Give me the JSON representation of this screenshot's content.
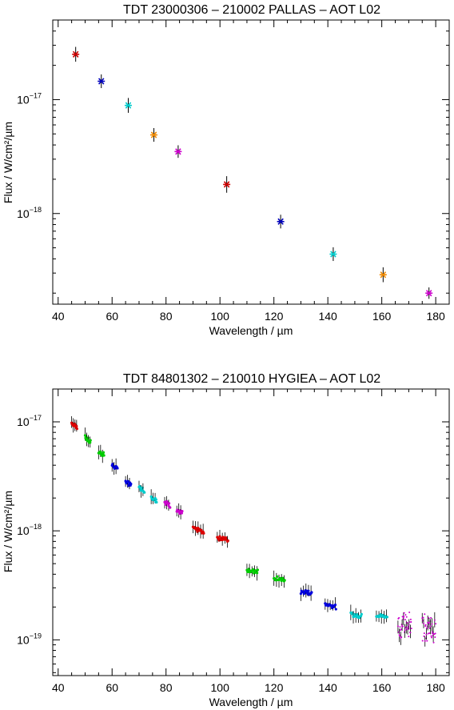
{
  "chart_data": [
    {
      "type": "scatter",
      "title": "TDT 23000306   –   210002 PALLAS   –   AOT L02",
      "xlabel": "Wavelength / µm",
      "ylabel": "Flux / W/cm²/µm",
      "xlim": [
        38,
        185
      ],
      "ylim": [
        1.6e-19,
        5e-17
      ],
      "yscale": "log",
      "x_ticks": [
        40,
        60,
        80,
        100,
        120,
        140,
        160,
        180
      ],
      "x_tick_labels": [
        "40",
        "60",
        "80",
        "100",
        "120",
        "140",
        "160",
        "180"
      ],
      "y_ticks": [
        1e-17,
        1e-18
      ],
      "y_tick_labels": [
        {
          "base": "10",
          "exp": "−17"
        },
        {
          "base": "10",
          "exp": "−18"
        }
      ],
      "grid": false,
      "points": [
        {
          "x": 46.5,
          "y": 2.5e-17,
          "color": "#cc0000",
          "err": 0.12
        },
        {
          "x": 56,
          "y": 1.45e-17,
          "color": "#0000bb",
          "err": 0.1
        },
        {
          "x": 66,
          "y": 8.9e-18,
          "color": "#00cccc",
          "err": 0.12
        },
        {
          "x": 75.5,
          "y": 4.9e-18,
          "color": "#ee8800",
          "err": 0.1
        },
        {
          "x": 84.5,
          "y": 3.5e-18,
          "color": "#cc00cc",
          "err": 0.08
        },
        {
          "x": 102.5,
          "y": 1.8e-18,
          "color": "#cc0000",
          "err": 0.15
        },
        {
          "x": 122.5,
          "y": 8.5e-19,
          "color": "#0000bb",
          "err": 0.1
        },
        {
          "x": 142,
          "y": 4.4e-19,
          "color": "#00cccc",
          "err": 0.1
        },
        {
          "x": 160.5,
          "y": 2.9e-19,
          "color": "#ee8800",
          "err": 0.12
        },
        {
          "x": 177.5,
          "y": 2e-19,
          "color": "#cc00cc",
          "err": 0.06
        }
      ]
    },
    {
      "type": "scatter",
      "title": "TDT 84801302   –   210010 HYGIEA   –   AOT L02",
      "xlabel": "Wavelength / µm",
      "ylabel": "Flux / W/cm²/µm",
      "xlim": [
        38,
        185
      ],
      "ylim": [
        4.7e-20,
        2e-17
      ],
      "yscale": "log",
      "x_ticks": [
        40,
        60,
        80,
        100,
        120,
        140,
        160,
        180
      ],
      "x_tick_labels": [
        "40",
        "60",
        "80",
        "100",
        "120",
        "140",
        "160",
        "180"
      ],
      "y_ticks": [
        1e-17,
        1e-18,
        1e-19
      ],
      "y_tick_labels": [
        {
          "base": "10",
          "exp": "−17"
        },
        {
          "base": "10",
          "exp": "−18"
        },
        {
          "base": "10",
          "exp": "−19"
        }
      ],
      "grid": false,
      "segments": [
        {
          "x0": 45,
          "x1": 47,
          "y0": 9.8e-18,
          "y1": 9e-18,
          "color": "#dd0000",
          "n": 14
        },
        {
          "x0": 50,
          "x1": 52,
          "y0": 7.2e-18,
          "y1": 6.5e-18,
          "color": "#00cc00",
          "n": 14
        },
        {
          "x0": 55,
          "x1": 57,
          "y0": 5.3e-18,
          "y1": 5e-18,
          "color": "#00cc00",
          "n": 12
        },
        {
          "x0": 60,
          "x1": 62,
          "y0": 4e-18,
          "y1": 3.7e-18,
          "color": "#0000dd",
          "n": 12
        },
        {
          "x0": 65,
          "x1": 67,
          "y0": 2.85e-18,
          "y1": 2.6e-18,
          "color": "#0000dd",
          "n": 12
        },
        {
          "x0": 70,
          "x1": 72,
          "y0": 2.5e-18,
          "y1": 2.35e-18,
          "color": "#00cccc",
          "n": 12
        },
        {
          "x0": 74.5,
          "x1": 76.5,
          "y0": 2.05e-18,
          "y1": 1.9e-18,
          "color": "#00cccc",
          "n": 12
        },
        {
          "x0": 79.5,
          "x1": 81.5,
          "y0": 1.85e-18,
          "y1": 1.7e-18,
          "color": "#cc00cc",
          "n": 12
        },
        {
          "x0": 84,
          "x1": 86,
          "y0": 1.55e-18,
          "y1": 1.45e-18,
          "color": "#cc00cc",
          "n": 12
        },
        {
          "x0": 90,
          "x1": 94,
          "y0": 1.05e-18,
          "y1": 9.8e-19,
          "color": "#dd0000",
          "n": 18
        },
        {
          "x0": 99,
          "x1": 103,
          "y0": 8.6e-19,
          "y1": 8.3e-19,
          "color": "#dd0000",
          "n": 18
        },
        {
          "x0": 110,
          "x1": 114,
          "y0": 4.4e-19,
          "y1": 4.2e-19,
          "color": "#00cc00",
          "n": 18
        },
        {
          "x0": 120,
          "x1": 124,
          "y0": 3.7e-19,
          "y1": 3.5e-19,
          "color": "#00cc00",
          "n": 18
        },
        {
          "x0": 130,
          "x1": 134,
          "y0": 2.75e-19,
          "y1": 2.7e-19,
          "color": "#0000dd",
          "n": 18
        },
        {
          "x0": 139,
          "x1": 143,
          "y0": 2.15e-19,
          "y1": 2e-19,
          "color": "#0000dd",
          "n": 18
        },
        {
          "x0": 148.5,
          "x1": 152.5,
          "y0": 1.72e-19,
          "y1": 1.65e-19,
          "color": "#00cccc",
          "n": 18
        },
        {
          "x0": 158,
          "x1": 162,
          "y0": 1.7e-19,
          "y1": 1.62e-19,
          "color": "#00cccc",
          "n": 18
        },
        {
          "x0": 166,
          "x1": 171,
          "y0": 1.4e-19,
          "y1": 1.35e-19,
          "color": "#cc00cc",
          "n": 40,
          "scatter": 0.25
        },
        {
          "x0": 175,
          "x1": 180,
          "y0": 1.3e-19,
          "y1": 1.25e-19,
          "color": "#cc00cc",
          "n": 40,
          "scatter": 0.25
        }
      ]
    }
  ]
}
